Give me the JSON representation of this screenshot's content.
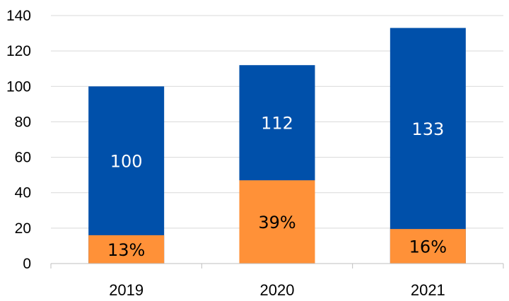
{
  "chart_data": {
    "type": "bar",
    "stacked": false,
    "overlay": true,
    "title": "",
    "xlabel": "",
    "ylabel": "",
    "ylim": [
      0,
      140
    ],
    "yticks": [
      0,
      20,
      40,
      60,
      80,
      100,
      120,
      140
    ],
    "grid": true,
    "categories": [
      "2019",
      "2020",
      "2021"
    ],
    "series": [
      {
        "values": [
          100,
          112,
          133
        ],
        "labels": [
          "100",
          "112",
          "133"
        ],
        "color": "#0050aa"
      },
      {
        "values": [
          16,
          47,
          19.5
        ],
        "labels": [
          "13%",
          "39%",
          "16%"
        ],
        "color": "#ff9138"
      }
    ]
  }
}
